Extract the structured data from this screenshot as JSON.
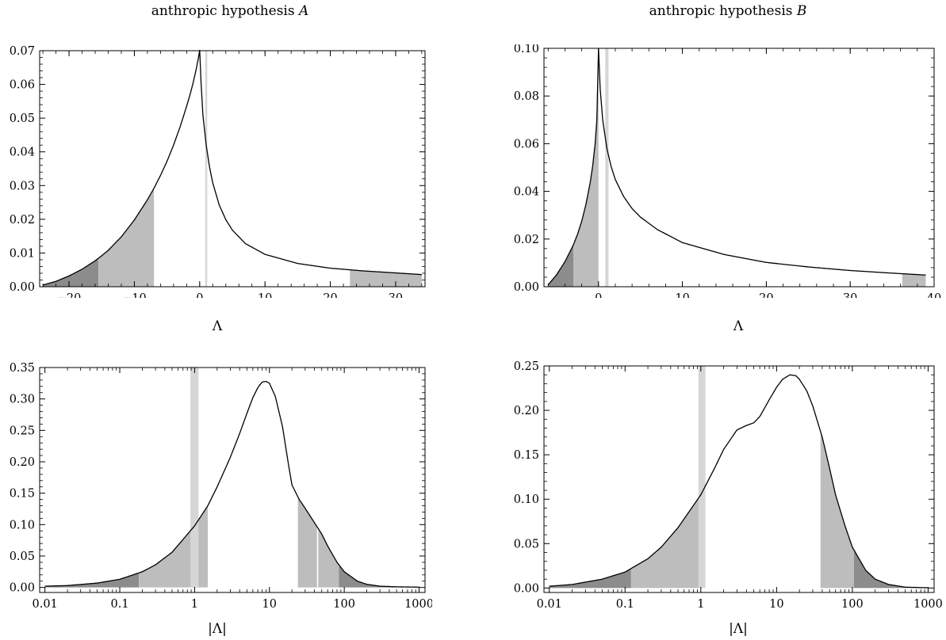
{
  "titles": {
    "left": "anthropic hypothesis A",
    "right": "anthropic hypothesis B"
  },
  "colors": {
    "curve": "#000000",
    "band_dark": "#8c8c8c",
    "band_mid": "#bdbdbd",
    "band_light": "#d6d6d6"
  },
  "chart_data": [
    {
      "id": "top-left",
      "type": "area",
      "title": "anthropic hypothesis A",
      "xlabel": "Λ",
      "ylabel": "",
      "xscale": "linear",
      "xlim": [
        -24.5,
        34.5
      ],
      "ylim": [
        0,
        0.07
      ],
      "xticks": [
        -20,
        -10,
        0,
        10,
        20,
        30
      ],
      "xticklabels": [
        "−20",
        "−10",
        "0",
        "10",
        "20",
        "30"
      ],
      "yticks": [
        0,
        0.01,
        0.02,
        0.03,
        0.04,
        0.05,
        0.06,
        0.07
      ],
      "yticklabels": [
        "0.00",
        "0.01",
        "0.02",
        "0.03",
        "0.04",
        "0.05",
        "0.06",
        "0.07"
      ],
      "curve": {
        "x": [
          -24,
          -22,
          -20,
          -18,
          -16,
          -15,
          -14,
          -12,
          -10,
          -8,
          -7,
          -6,
          -5,
          -4,
          -3,
          -2,
          -1.5,
          -1,
          -0.5,
          -0.2,
          0,
          0.2,
          0.5,
          1,
          1.5,
          2,
          3,
          4,
          5,
          7,
          10,
          15,
          20,
          25,
          30,
          34
        ],
        "y": [
          0.0005,
          0.0016,
          0.0032,
          0.0052,
          0.0077,
          0.0092,
          0.0108,
          0.0148,
          0.0198,
          0.0258,
          0.0292,
          0.033,
          0.0372,
          0.042,
          0.0474,
          0.0535,
          0.0568,
          0.0605,
          0.0648,
          0.0678,
          0.0702,
          0.061,
          0.0508,
          0.042,
          0.0356,
          0.0308,
          0.0242,
          0.0199,
          0.0168,
          0.0128,
          0.0096,
          0.0069,
          0.0055,
          0.0047,
          0.0041,
          0.0036
        ]
      },
      "shaded": [
        {
          "from": -24,
          "to": -15.5,
          "shade": "dark"
        },
        {
          "from": -15.5,
          "to": -7,
          "shade": "mid"
        },
        {
          "from": 23,
          "to": 34,
          "shade": "mid"
        }
      ],
      "marker_band": {
        "from": 0.85,
        "to": 1.15,
        "shade": "light"
      }
    },
    {
      "id": "top-right",
      "type": "area",
      "title": "anthropic hypothesis B",
      "xlabel": "Λ",
      "ylabel": "",
      "xscale": "linear",
      "xlim": [
        -6.5,
        40
      ],
      "ylim": [
        0,
        0.1
      ],
      "xticks": [
        0,
        10,
        20,
        30,
        40
      ],
      "xticklabels": [
        "0",
        "10",
        "20",
        "30",
        "40"
      ],
      "yticks": [
        0,
        0.02,
        0.04,
        0.06,
        0.08,
        0.1
      ],
      "yticklabels": [
        "0.00",
        "0.02",
        "0.04",
        "0.06",
        "0.08",
        "0.10"
      ],
      "curve": {
        "x": [
          -6,
          -5,
          -4,
          -3,
          -2.5,
          -2,
          -1.5,
          -1,
          -0.7,
          -0.4,
          -0.2,
          0,
          0.2,
          0.5,
          1,
          1.5,
          2,
          3,
          4,
          5,
          7,
          10,
          15,
          20,
          25,
          30,
          35,
          39
        ],
        "y": [
          0.0008,
          0.005,
          0.0105,
          0.0175,
          0.022,
          0.0275,
          0.0345,
          0.0435,
          0.0505,
          0.06,
          0.07,
          0.1,
          0.083,
          0.07,
          0.058,
          0.0505,
          0.045,
          0.0378,
          0.0328,
          0.0292,
          0.024,
          0.0185,
          0.0135,
          0.0102,
          0.0083,
          0.0068,
          0.0057,
          0.0049
        ]
      },
      "shaded": [
        {
          "from": -6,
          "to": -3,
          "shade": "dark"
        },
        {
          "from": -3,
          "to": 0,
          "shade": "mid"
        },
        {
          "from": 36.2,
          "to": 39,
          "shade": "mid"
        }
      ],
      "marker_band": {
        "from": 0.8,
        "to": 1.2,
        "shade": "light"
      }
    },
    {
      "id": "bottom-left",
      "type": "area",
      "title": "",
      "xlabel": "|Λ|",
      "ylabel": "",
      "xscale": "log",
      "xlim": [
        0.0085,
        1200
      ],
      "ylim": [
        -0.008,
        0.35
      ],
      "xticks": [
        0.01,
        0.1,
        1,
        10,
        100,
        1000
      ],
      "xticklabels": [
        "0.01",
        "0.1",
        "1",
        "10",
        "100",
        "1000"
      ],
      "yticks": [
        0,
        0.05,
        0.1,
        0.15,
        0.2,
        0.25,
        0.3,
        0.35
      ],
      "yticklabels": [
        "0.00",
        "0.05",
        "0.10",
        "0.15",
        "0.20",
        "0.25",
        "0.30",
        "0.35"
      ],
      "curve": {
        "x": [
          0.01,
          0.02,
          0.05,
          0.1,
          0.2,
          0.3,
          0.5,
          1,
          1.5,
          2,
          3,
          4,
          5,
          6,
          7,
          8,
          9,
          10,
          12,
          15,
          18,
          20,
          25,
          30,
          40,
          50,
          60,
          80,
          100,
          150,
          200,
          300,
          500,
          1000
        ],
        "y": [
          0.002,
          0.003,
          0.007,
          0.013,
          0.025,
          0.036,
          0.056,
          0.098,
          0.13,
          0.16,
          0.207,
          0.245,
          0.277,
          0.302,
          0.318,
          0.327,
          0.328,
          0.325,
          0.304,
          0.255,
          0.195,
          0.163,
          0.14,
          0.126,
          0.103,
          0.085,
          0.066,
          0.04,
          0.025,
          0.01,
          0.005,
          0.002,
          0.001,
          0.0005
        ]
      },
      "shaded": [
        {
          "from": 0.01,
          "to": 0.18,
          "shade": "dark"
        },
        {
          "from": 0.18,
          "to": 1.5,
          "shade": "mid"
        },
        {
          "from": 24,
          "to": 85,
          "shade": "mid"
        },
        {
          "from": 85,
          "to": 1000,
          "shade": "dark"
        }
      ],
      "marker_band": {
        "from": 0.88,
        "to": 1.13,
        "shade": "light"
      },
      "white_line_at": 44
    },
    {
      "id": "bottom-right",
      "type": "area",
      "title": "",
      "xlabel": "|Λ|",
      "ylabel": "",
      "xscale": "log",
      "xlim": [
        0.0085,
        1200
      ],
      "ylim": [
        -0.005,
        0.25
      ],
      "xticks": [
        0.01,
        0.1,
        1,
        10,
        100,
        1000
      ],
      "xticklabels": [
        "0.01",
        "0.1",
        "1",
        "10",
        "100",
        "1000"
      ],
      "yticks": [
        0,
        0.05,
        0.1,
        0.15,
        0.2,
        0.25
      ],
      "yticklabels": [
        "0.00",
        "0.05",
        "0.10",
        "0.15",
        "0.20",
        "0.25"
      ],
      "curve": {
        "x": [
          0.01,
          0.02,
          0.05,
          0.1,
          0.2,
          0.3,
          0.5,
          1,
          1.5,
          2,
          3,
          4,
          5,
          6,
          8,
          10,
          12,
          15,
          18,
          20,
          25,
          30,
          40,
          50,
          60,
          80,
          100,
          150,
          200,
          300,
          500,
          1000
        ],
        "y": [
          0.002,
          0.004,
          0.01,
          0.018,
          0.033,
          0.046,
          0.068,
          0.105,
          0.134,
          0.156,
          0.178,
          0.183,
          0.186,
          0.193,
          0.212,
          0.226,
          0.235,
          0.24,
          0.239,
          0.235,
          0.222,
          0.205,
          0.17,
          0.135,
          0.105,
          0.07,
          0.046,
          0.02,
          0.01,
          0.004,
          0.001,
          0.0003
        ]
      },
      "shaded": [
        {
          "from": 0.01,
          "to": 0.12,
          "shade": "dark"
        },
        {
          "from": 0.12,
          "to": 0.95,
          "shade": "mid"
        },
        {
          "from": 38,
          "to": 105,
          "shade": "mid"
        },
        {
          "from": 105,
          "to": 1000,
          "shade": "dark"
        }
      ],
      "marker_band": {
        "from": 0.93,
        "to": 1.15,
        "shade": "light"
      }
    }
  ]
}
